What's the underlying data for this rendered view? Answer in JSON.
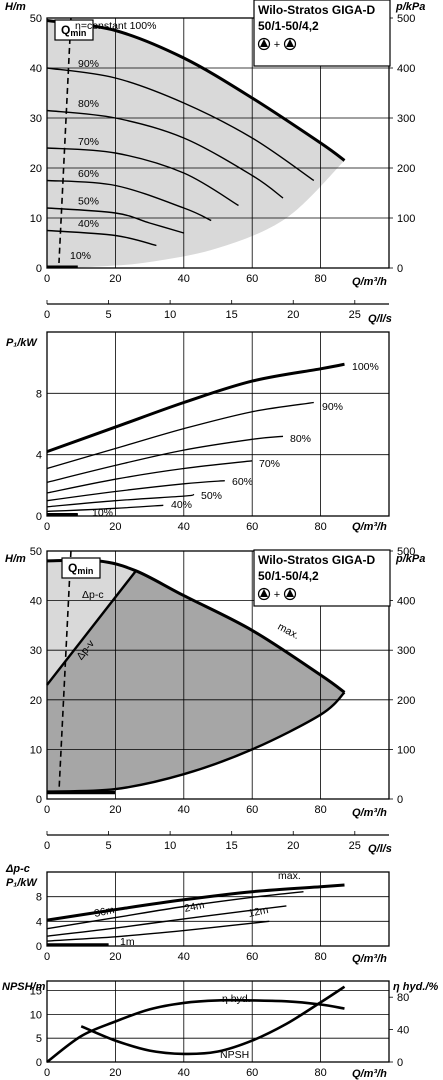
{
  "charts": {
    "title_line1": "Wilo-Stratos GIGA-D",
    "title_line2": "50/1-50/4,2",
    "title_line2b": "50/1-50/4,2",
    "pump_symbol_plus": "+",
    "qmin_label": "Q",
    "qmin_sub": "min",
    "q_axis_label": "Q/m³/h",
    "q_ls_label": "Q/l/s",
    "h_axis_label": "H/m",
    "p_axis_label": "p/kPa",
    "p1_axis_label": "P₁/kW",
    "dpc_label": "Δp-c",
    "npsh_axis_label": "NPSH/m",
    "eta_axis_label": "η hyd./%"
  },
  "chart_data": [
    {
      "type": "line",
      "panel": "head-speed-curves",
      "x_label": "Q/m³/h",
      "y_label": "H/m",
      "y2_label": "p/kPa",
      "x2_label": "Q/l/s",
      "xlim": [
        0,
        100
      ],
      "ylim": [
        0,
        50
      ],
      "y2lim": [
        0,
        500
      ],
      "x_ticks": [
        0,
        20,
        40,
        60,
        80
      ],
      "y_ticks": [
        0,
        10,
        20,
        30,
        40,
        50
      ],
      "y2_ticks": [
        0,
        100,
        200,
        300,
        400,
        500
      ],
      "x2_ticks": [
        0,
        5,
        10,
        15,
        20,
        25
      ],
      "series": [
        {
          "name": "n=constant 100%",
          "x": [
            0,
            20,
            40,
            60,
            80,
            87
          ],
          "y": [
            49.5,
            47.5,
            42,
            34,
            25,
            21.5
          ]
        },
        {
          "name": "90%",
          "x": [
            0,
            20,
            40,
            60,
            78
          ],
          "y": [
            40,
            38,
            33,
            26,
            17.5
          ]
        },
        {
          "name": "80%",
          "x": [
            0,
            20,
            40,
            60,
            69
          ],
          "y": [
            31.5,
            30,
            26,
            18.5,
            14
          ]
        },
        {
          "name": "70%",
          "x": [
            0,
            20,
            40,
            56
          ],
          "y": [
            24,
            23,
            19,
            12.5
          ]
        },
        {
          "name": "60%",
          "x": [
            0,
            20,
            40,
            48
          ],
          "y": [
            17.5,
            16.5,
            12,
            9.5
          ]
        },
        {
          "name": "50%",
          "x": [
            0,
            20,
            30,
            40
          ],
          "y": [
            12,
            11,
            9,
            7
          ]
        },
        {
          "name": "40%",
          "x": [
            0,
            20,
            32
          ],
          "y": [
            7.5,
            6.5,
            4.5
          ]
        },
        {
          "name": "10%",
          "x": [
            0,
            8
          ],
          "y": [
            0.3,
            0.1
          ]
        },
        {
          "name": "Q",
          "x": [
            7,
            3.5
          ],
          "y": [
            50,
            1
          ]
        }
      ]
    },
    {
      "type": "line",
      "panel": "power-speed-curves",
      "x_label": "Q/m³/h",
      "y_label": "P₁/kW",
      "xlim": [
        0,
        100
      ],
      "ylim": [
        0,
        12
      ],
      "x_ticks": [
        0,
        20,
        40,
        60,
        80
      ],
      "y_ticks": [
        0,
        4,
        8
      ],
      "series": [
        {
          "name": "100%",
          "x": [
            0,
            20,
            40,
            60,
            80,
            87
          ],
          "y": [
            4.2,
            5.8,
            7.4,
            8.8,
            9.6,
            9.9
          ]
        },
        {
          "name": "90%",
          "x": [
            0,
            20,
            40,
            60,
            78
          ],
          "y": [
            3.1,
            4.4,
            5.7,
            6.8,
            7.4
          ]
        },
        {
          "name": "80%",
          "x": [
            0,
            20,
            40,
            60,
            69
          ],
          "y": [
            2.2,
            3.3,
            4.3,
            5.0,
            5.2
          ]
        },
        {
          "name": "70%",
          "x": [
            0,
            20,
            40,
            60
          ],
          "y": [
            1.5,
            2.4,
            3.1,
            3.6
          ]
        },
        {
          "name": "60%",
          "x": [
            0,
            20,
            40,
            52
          ],
          "y": [
            1.0,
            1.6,
            2.1,
            2.3
          ]
        },
        {
          "name": "50%",
          "x": [
            0,
            20,
            40,
            43
          ],
          "y": [
            0.6,
            1.0,
            1.3,
            1.4
          ]
        },
        {
          "name": "40%",
          "x": [
            0,
            20,
            34
          ],
          "y": [
            0.3,
            0.5,
            0.7
          ]
        },
        {
          "name": "10%",
          "x": [
            0,
            9
          ],
          "y": [
            0.05,
            0.1
          ]
        }
      ]
    },
    {
      "type": "area",
      "panel": "head-control-modes",
      "x_label": "Q/m³/h",
      "y_label": "H/m",
      "y2_label": "p/kPa",
      "x2_label": "Q/l/s",
      "xlim": [
        0,
        100
      ],
      "ylim": [
        0,
        50
      ],
      "y2lim": [
        0,
        500
      ],
      "x_ticks": [
        0,
        20,
        40,
        60,
        80
      ],
      "y_ticks": [
        0,
        10,
        20,
        30,
        40,
        50
      ],
      "y2_ticks": [
        0,
        100,
        200,
        300,
        400,
        500
      ],
      "x2_ticks": [
        0,
        5,
        10,
        15,
        20,
        25
      ],
      "series": [
        {
          "name": "max.",
          "x": [
            0,
            15,
            26,
            40,
            60,
            80,
            87
          ],
          "y": [
            48,
            48,
            46,
            41,
            34,
            25,
            21.5
          ]
        },
        {
          "name": "Δp-c",
          "x": [
            0,
            15
          ],
          "y": [
            48,
            48
          ]
        },
        {
          "name": "Δp-v",
          "x": [
            0,
            26
          ],
          "y": [
            23,
            46
          ]
        },
        {
          "name": "min",
          "x": [
            0,
            20,
            40,
            60,
            80,
            87
          ],
          "y": [
            1.5,
            2,
            5,
            10,
            17,
            21.5
          ]
        }
      ]
    },
    {
      "type": "line",
      "panel": "power-control-modes",
      "x_label": "Q/m³/h",
      "y_label": "P₁/kW",
      "xlim": [
        0,
        100
      ],
      "ylim": [
        0,
        12
      ],
      "x_ticks": [
        0,
        20,
        40,
        60,
        80
      ],
      "y_ticks": [
        0,
        4,
        8
      ],
      "series": [
        {
          "name": "max.",
          "x": [
            0,
            20,
            40,
            60,
            80,
            87
          ],
          "y": [
            4.2,
            5.9,
            7.5,
            8.8,
            9.6,
            9.9
          ]
        },
        {
          "name": "36m",
          "x": [
            0,
            20,
            40,
            60,
            75
          ],
          "y": [
            2.8,
            4.6,
            6.4,
            7.9,
            8.8
          ]
        },
        {
          "name": "24m",
          "x": [
            0,
            20,
            40,
            60,
            70
          ],
          "y": [
            1.6,
            2.9,
            4.4,
            5.8,
            6.5
          ]
        },
        {
          "name": "12m",
          "x": [
            0,
            20,
            40,
            60,
            65
          ],
          "y": [
            0.8,
            1.5,
            2.5,
            3.7,
            4.0
          ]
        },
        {
          "name": "1m",
          "x": [
            0,
            18
          ],
          "y": [
            0.15,
            0.25
          ]
        }
      ]
    },
    {
      "type": "line",
      "panel": "npsh-efficiency",
      "x_label": "Q/m³/h",
      "y_label": "NPSH/m",
      "y2_label": "η hyd./%",
      "xlim": [
        0,
        100
      ],
      "ylim": [
        0,
        17
      ],
      "y2lim": [
        0,
        100
      ],
      "x_ticks": [
        0,
        20,
        40,
        60,
        80
      ],
      "y_ticks": [
        0,
        5,
        10,
        15
      ],
      "y2_ticks": [
        0,
        40,
        80
      ],
      "series": [
        {
          "name": "η hyd.",
          "x": [
            0,
            10,
            20,
            30,
            40,
            50,
            60,
            70,
            80,
            87
          ],
          "y2": [
            0,
            32,
            50,
            65,
            73,
            76,
            76,
            75,
            71,
            66
          ]
        },
        {
          "name": "NPSH",
          "x": [
            10,
            20,
            30,
            40,
            50,
            60,
            70,
            80,
            87
          ],
          "y": [
            7.5,
            4.5,
            2.4,
            1.7,
            2.2,
            4.5,
            8,
            12.5,
            15.8
          ]
        }
      ]
    }
  ]
}
